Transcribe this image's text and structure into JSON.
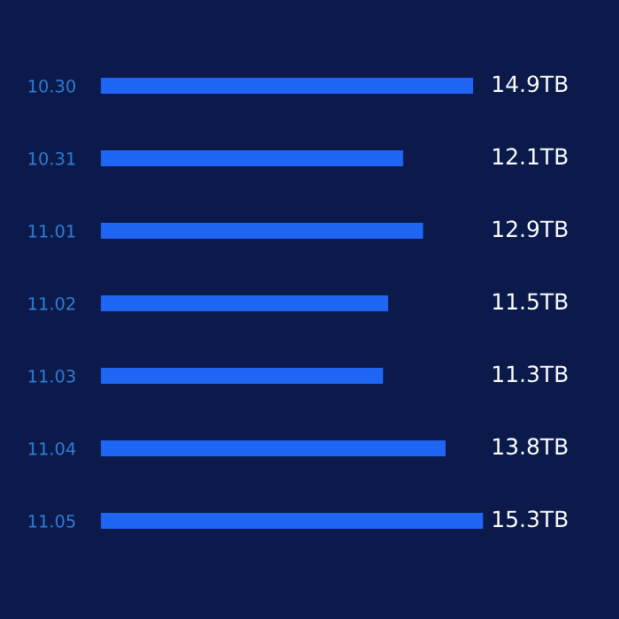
{
  "chart_data": {
    "type": "bar",
    "orientation": "horizontal",
    "categories": [
      "10.30",
      "10.31",
      "11.01",
      "11.02",
      "11.03",
      "11.04",
      "11.05"
    ],
    "values": [
      14.9,
      12.1,
      12.9,
      11.5,
      11.3,
      13.8,
      15.3
    ],
    "value_labels": [
      "14.9TB",
      "12.1TB",
      "12.9TB",
      "11.5TB",
      "11.3TB",
      "13.8TB",
      "15.3TB"
    ],
    "color": "#1f66f5",
    "grid": false,
    "legend": false
  }
}
